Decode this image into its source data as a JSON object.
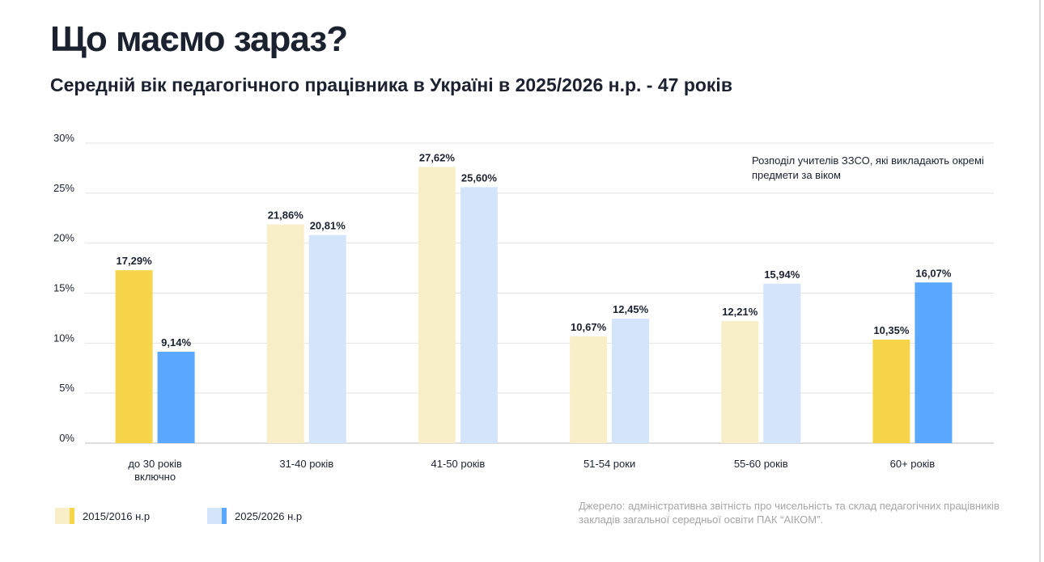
{
  "title": "Що маємо зараз?",
  "subtitle": "Середній вік педагогічного працівника в Україні в 2025/2026 н.р. - 47 років",
  "note": "Розподіл учителів ЗЗСО, які викладають окремі предмети за віком",
  "source": "Джерело: адміністративна звітність про чисельність та склад педагогічних працівників закладів загальної середньої освіти ПАК “АІКОМ”.",
  "colors": {
    "yellow": "#F7D54A",
    "yellow_pale": "#F8EFC9",
    "blue": "#5AA7FF",
    "blue_pale": "#D4E5FB"
  },
  "chart_data": {
    "type": "bar",
    "categories": [
      "до 30 років\nвключно",
      "31-40 років",
      "41-50 років",
      "51-54 роки",
      "55-60 років",
      "60+ років"
    ],
    "highlighted_categories": [
      "до 30 років\nвключно",
      "60+ років"
    ],
    "series": [
      {
        "name": "2015/2016 н.р",
        "values": [
          17.29,
          21.86,
          27.62,
          10.67,
          12.21,
          10.35
        ],
        "labels": [
          "17,29%",
          "21,86%",
          "27,62%",
          "10,67%",
          "12,21%",
          "10,35%"
        ]
      },
      {
        "name": "2025/2026 н.р",
        "values": [
          9.14,
          20.81,
          25.6,
          12.45,
          15.94,
          16.07
        ],
        "labels": [
          "9,14%",
          "20,81%",
          "25,60%",
          "12,45%",
          "15,94%",
          "16,07%"
        ]
      }
    ],
    "yticks": [
      "0%",
      "5%",
      "10%",
      "15%",
      "20%",
      "25%",
      "30%"
    ],
    "ylim": [
      0,
      30
    ],
    "grid": true,
    "legend": "bottom-left"
  }
}
